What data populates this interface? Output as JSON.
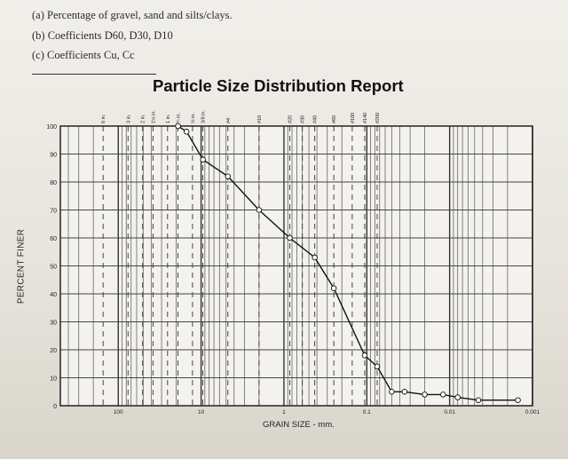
{
  "questions": {
    "a": "(a) Percentage of gravel, sand and silts/clays.",
    "b": "(b) Coefficients D60, D30, D10",
    "c": "(c) Coefficients Cu, Cc"
  },
  "chart_data": {
    "type": "line",
    "title": "Particle Size Distribution Report",
    "xlabel": "GRAIN SIZE - mm.",
    "ylabel": "PERCENT FINER",
    "x_scale": "log",
    "x_reversed": true,
    "xlim": [
      500,
      0.001
    ],
    "ylim": [
      0,
      100
    ],
    "x_tick_labels": [
      {
        "value": 100,
        "label": "100"
      },
      {
        "value": 10,
        "label": "10"
      },
      {
        "value": 1,
        "label": "1"
      },
      {
        "value": 0.1,
        "label": "0.1"
      },
      {
        "value": 0.01,
        "label": "0.01"
      },
      {
        "value": 0.001,
        "label": "0.001"
      }
    ],
    "y_ticks": [
      0,
      10,
      20,
      30,
      40,
      50,
      60,
      70,
      80,
      90,
      100
    ],
    "sieves": [
      {
        "label": "6 in.",
        "size": 152.4
      },
      {
        "label": "3 in.",
        "size": 76.2
      },
      {
        "label": "2 in.",
        "size": 50.8
      },
      {
        "label": "1½ in.",
        "size": 38.1
      },
      {
        "label": "1 in.",
        "size": 25.4
      },
      {
        "label": "¾ in.",
        "size": 19.05
      },
      {
        "label": "½ in.",
        "size": 12.7
      },
      {
        "label": "3/8 in.",
        "size": 9.525
      },
      {
        "label": "#4",
        "size": 4.75
      },
      {
        "label": "#10",
        "size": 2.0
      },
      {
        "label": "#20",
        "size": 0.85
      },
      {
        "label": "#30",
        "size": 0.6
      },
      {
        "label": "#40",
        "size": 0.425
      },
      {
        "label": "#60",
        "size": 0.25
      },
      {
        "label": "#100",
        "size": 0.15
      },
      {
        "label": "#140",
        "size": 0.106
      },
      {
        "label": "#200",
        "size": 0.075
      }
    ],
    "grid": true,
    "series": [
      {
        "color": "#111111",
        "points": [
          {
            "x": 19.0,
            "y": 100
          },
          {
            "x": 15.0,
            "y": 98
          },
          {
            "x": 9.5,
            "y": 88
          },
          {
            "x": 4.75,
            "y": 82
          },
          {
            "x": 2.0,
            "y": 70
          },
          {
            "x": 0.85,
            "y": 60
          },
          {
            "x": 0.425,
            "y": 53
          },
          {
            "x": 0.25,
            "y": 42
          },
          {
            "x": 0.106,
            "y": 18
          },
          {
            "x": 0.075,
            "y": 14
          },
          {
            "x": 0.05,
            "y": 5
          },
          {
            "x": 0.035,
            "y": 5
          },
          {
            "x": 0.02,
            "y": 4
          },
          {
            "x": 0.012,
            "y": 4
          },
          {
            "x": 0.008,
            "y": 3
          },
          {
            "x": 0.0045,
            "y": 2
          },
          {
            "x": 0.0015,
            "y": 2
          }
        ]
      }
    ]
  }
}
